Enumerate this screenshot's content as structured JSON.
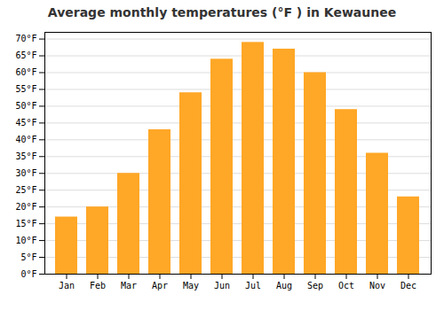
{
  "chart_data": {
    "type": "bar",
    "title": "Average monthly temperatures (°F ) in Kewaunee",
    "categories": [
      "Jan",
      "Feb",
      "Mar",
      "Apr",
      "May",
      "Jun",
      "Jul",
      "Aug",
      "Sep",
      "Oct",
      "Nov",
      "Dec"
    ],
    "values": [
      17,
      20,
      30,
      43,
      54,
      64,
      69,
      67,
      60,
      49,
      36,
      23
    ],
    "color": "#FFA726",
    "ylim": [
      0,
      72
    ],
    "yticks": [
      {
        "value": 0,
        "label": "0°F"
      },
      {
        "value": 5,
        "label": "5°F"
      },
      {
        "value": 10,
        "label": "10°F"
      },
      {
        "value": 15,
        "label": "15°F"
      },
      {
        "value": 20,
        "label": "20°F"
      },
      {
        "value": 25,
        "label": "25°F"
      },
      {
        "value": 30,
        "label": "30°F"
      },
      {
        "value": 35,
        "label": "35°F"
      },
      {
        "value": 40,
        "label": "40°F"
      },
      {
        "value": 45,
        "label": "45°F"
      },
      {
        "value": 50,
        "label": "50°F"
      },
      {
        "value": 55,
        "label": "55°F"
      },
      {
        "value": 60,
        "label": "60°F"
      },
      {
        "value": 65,
        "label": "65°F"
      },
      {
        "value": 70,
        "label": "70°F"
      }
    ],
    "grid": true
  }
}
